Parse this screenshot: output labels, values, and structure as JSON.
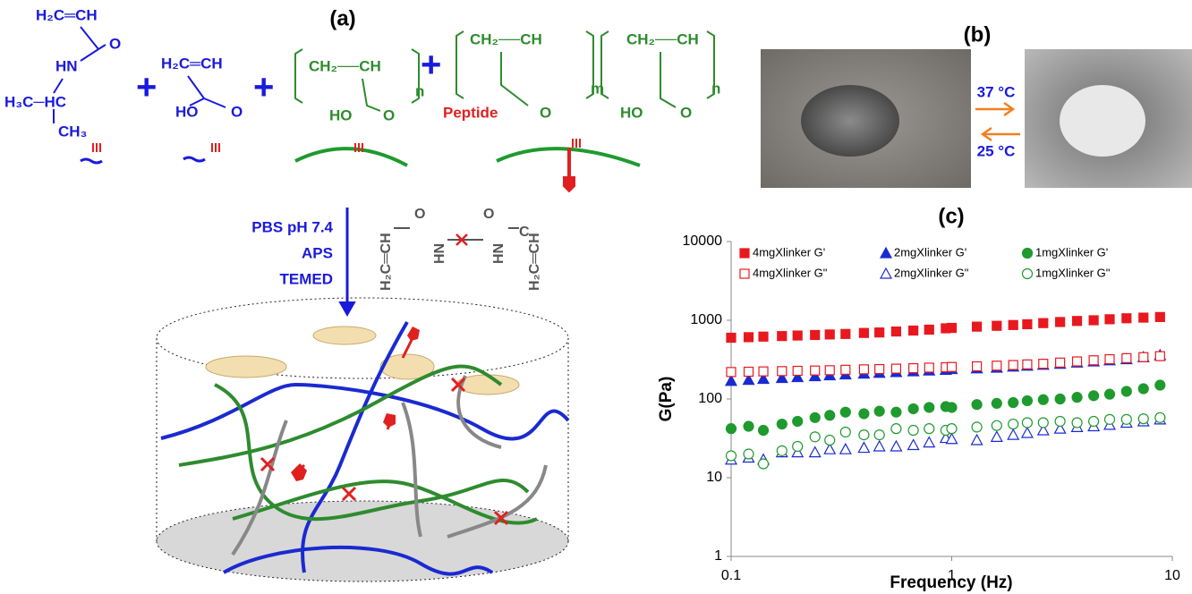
{
  "panel_a": {
    "label": "(a)",
    "texts": [
      "H₂C═CH",
      "HN",
      "O",
      "H₃C─HC",
      "CH₃",
      "+",
      "H₂C═CH",
      "HO",
      "O",
      "+",
      "CH₂──CH",
      "HO",
      "O",
      "n",
      "+",
      "CH₂──CH",
      "Peptide",
      "O",
      "m",
      "CH₂──CH",
      "HO",
      "O",
      "n",
      "PBS pH 7.4",
      "APS",
      "TEMED",
      "H₂C═CH",
      "HN",
      "HN",
      "H₂C═CH",
      "O",
      "O",
      "C"
    ]
  },
  "panel_b": {
    "label": "(b)",
    "heating": "37 °C",
    "cooling": "25 °C"
  },
  "chart_data": {
    "type": "scatter",
    "title": "(c)",
    "x_label": "Frequency (Hz)",
    "y_label": "G(Pa)",
    "xscale": "log",
    "yscale": "log",
    "xlim": [
      0.1,
      10
    ],
    "ylim": [
      1,
      10000
    ],
    "xticks": [
      0.1,
      1,
      10
    ],
    "yticks": [
      1,
      10,
      100,
      1000,
      10000
    ],
    "grid": false,
    "x": [
      0.1,
      0.12,
      0.14,
      0.17,
      0.2,
      0.24,
      0.28,
      0.33,
      0.4,
      0.47,
      0.56,
      0.67,
      0.79,
      0.94,
      1,
      1.3,
      1.6,
      1.9,
      2.2,
      2.6,
      3.1,
      3.7,
      4.4,
      5.2,
      6.2,
      7.4,
      8.8
    ],
    "series": [
      {
        "name": "4mgXlinker G'",
        "color": "#e8191e",
        "marker": "square",
        "filled": true,
        "values": [
          600,
          610,
          620,
          630,
          640,
          650,
          660,
          670,
          690,
          700,
          720,
          740,
          760,
          790,
          800,
          830,
          850,
          870,
          890,
          920,
          950,
          980,
          1000,
          1030,
          1060,
          1080,
          1100
        ]
      },
      {
        "name": "2mgXlinker G'",
        "color": "#1a2ad0",
        "marker": "triangle",
        "filled": true,
        "values": [
          170,
          175,
          180,
          185,
          190,
          195,
          200,
          205,
          210,
          215,
          220,
          225,
          230,
          235,
          240,
          245,
          250,
          258,
          265,
          272,
          280,
          290,
          300,
          310,
          320,
          340,
          360
        ]
      },
      {
        "name": "1mgXlinker G'",
        "color": "#1f9a2e",
        "marker": "circle",
        "filled": true,
        "values": [
          42,
          45,
          40,
          48,
          52,
          58,
          62,
          68,
          65,
          70,
          68,
          75,
          78,
          80,
          78,
          85,
          88,
          90,
          95,
          98,
          100,
          105,
          110,
          115,
          125,
          135,
          150
        ]
      },
      {
        "name": "4mgXlinker G\"",
        "color": "#e8191e",
        "marker": "square",
        "filled": false,
        "values": [
          220,
          222,
          224,
          226,
          228,
          230,
          232,
          235,
          238,
          240,
          243,
          246,
          250,
          253,
          255,
          260,
          265,
          270,
          275,
          280,
          290,
          300,
          310,
          320,
          330,
          340,
          350
        ]
      },
      {
        "name": "2mgXlinker G\"",
        "color": "#1a2ad0",
        "marker": "triangle",
        "filled": false,
        "values": [
          17,
          18,
          17,
          21,
          21,
          21,
          23,
          23,
          24,
          25,
          25,
          26,
          28,
          32,
          31,
          30,
          33,
          35,
          37,
          40,
          42,
          44,
          45,
          47,
          50,
          52,
          55
        ]
      },
      {
        "name": "1mgXlinker G\"",
        "color": "#1f9a2e",
        "marker": "circle",
        "filled": false,
        "values": [
          19,
          20,
          15,
          22,
          25,
          33,
          30,
          38,
          35,
          35,
          42,
          40,
          42,
          40,
          42,
          44,
          46,
          48,
          50,
          50,
          52,
          50,
          52,
          55,
          55,
          56,
          58
        ]
      }
    ]
  }
}
